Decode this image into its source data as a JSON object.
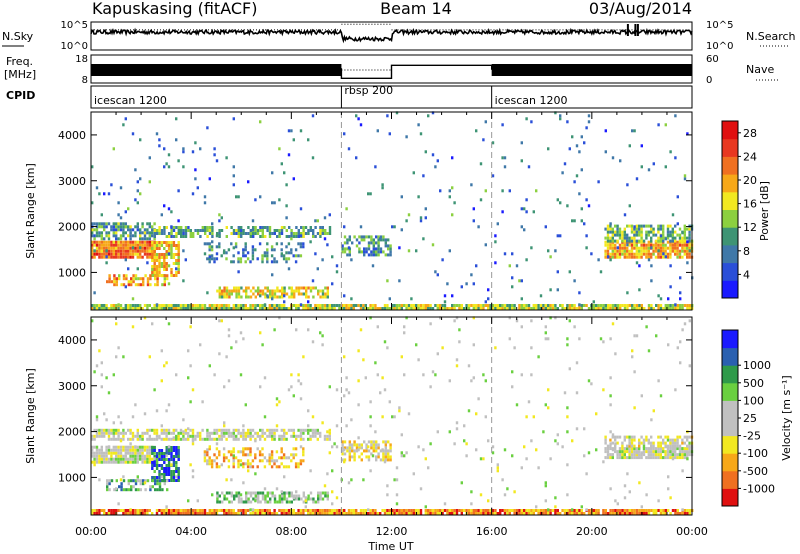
{
  "header": {
    "station": "Kapuskasing (fitACF)",
    "beam": "Beam 14",
    "date": "03/Aug/2014"
  },
  "strip_panels": {
    "nsky": {
      "left_label": "N.Sky",
      "left_ticks": [
        "10^5",
        "10^0"
      ],
      "right_label": "N.Search",
      "right_ticks": [
        "10^5",
        "10^0"
      ],
      "log_range": [
        0,
        5
      ],
      "segments": [
        {
          "start_h": 0,
          "end_h": 10,
          "nsky_log": 3.2,
          "nsearch_log": 3.6
        },
        {
          "start_h": 10,
          "end_h": 12,
          "nsky_log": 2.0,
          "nsearch_log": 4.6
        },
        {
          "start_h": 12,
          "end_h": 24,
          "nsky_log": 3.2,
          "nsearch_log": 3.6
        }
      ]
    },
    "freq": {
      "left_label": "Freq.",
      "left_unit": "[MHz]",
      "left_ticks": [
        "18",
        "8"
      ],
      "right_label": "Nave",
      "right_ticks": [
        "60",
        "0"
      ],
      "nave_range": [
        0,
        60
      ],
      "segments": [
        {
          "start_h": 0,
          "end_h": 10,
          "nave": 30
        },
        {
          "start_h": 10,
          "end_h": 12,
          "nave": 10
        },
        {
          "start_h": 12,
          "end_h": 16,
          "nave": 38
        },
        {
          "start_h": 16,
          "end_h": 24,
          "nave": 30
        }
      ]
    },
    "cpid": {
      "label": "CPID",
      "segments": [
        {
          "start_h": 0,
          "end_h": 10,
          "name": "icescan 1200"
        },
        {
          "start_h": 10,
          "end_h": 16,
          "name": "rbsp 200"
        },
        {
          "start_h": 16,
          "end_h": 24,
          "name": "icescan 1200"
        }
      ]
    }
  },
  "chart_data": [
    {
      "type": "heatmap",
      "ylabel": "Slant Range [km]",
      "xlabel": "",
      "xlim_hours": [
        0,
        24
      ],
      "ylim_km": [
        180,
        4500
      ],
      "yticks": [
        1000,
        2000,
        3000,
        4000
      ],
      "colorbar": {
        "label": "Power [dB]",
        "range": [
          0,
          30
        ],
        "ticks": [
          "4",
          "8",
          "12",
          "16",
          "20",
          "24",
          "28"
        ],
        "colors": [
          "#1a1aff",
          "#2a4fd8",
          "#3f78a8",
          "#3e9474",
          "#8cd040",
          "#f2e820",
          "#f7a818",
          "#f07020",
          "#e83820",
          "#e01010"
        ]
      },
      "regions": [
        {
          "t0": 0.0,
          "t1": 2.5,
          "r0": 1300,
          "r1": 1650,
          "level": 0.75,
          "density": 0.95
        },
        {
          "t0": 2.4,
          "t1": 3.5,
          "r0": 900,
          "r1": 1650,
          "level": 0.6,
          "density": 0.75
        },
        {
          "t0": 0.6,
          "t1": 3.0,
          "r0": 700,
          "r1": 950,
          "level": 0.65,
          "density": 0.6
        },
        {
          "t0": 0.0,
          "t1": 2.5,
          "r0": 1700,
          "r1": 2050,
          "level": 0.35,
          "density": 0.7
        },
        {
          "t0": 2.5,
          "t1": 9.5,
          "r0": 1750,
          "r1": 2000,
          "level": 0.35,
          "density": 0.6
        },
        {
          "t0": 4.5,
          "t1": 8.5,
          "r0": 1200,
          "r1": 1650,
          "level": 0.3,
          "density": 0.35
        },
        {
          "t0": 5.0,
          "t1": 9.5,
          "r0": 430,
          "r1": 650,
          "level": 0.55,
          "density": 0.65
        },
        {
          "t0": 10.0,
          "t1": 12.0,
          "r0": 1350,
          "r1": 1750,
          "level": 0.3,
          "density": 0.55
        },
        {
          "t0": 20.5,
          "t1": 24.0,
          "r0": 1300,
          "r1": 1650,
          "level": 0.65,
          "density": 0.9
        },
        {
          "t0": 20.5,
          "t1": 24.0,
          "r0": 1650,
          "r1": 2000,
          "level": 0.4,
          "density": 0.7
        },
        {
          "t0": 0.0,
          "t1": 24.0,
          "r0": 180,
          "r1": 260,
          "level": 0.5,
          "density": 0.9
        },
        {
          "t0": 0.0,
          "t1": 24.0,
          "r0": 260,
          "r1": 4500,
          "level": 0.25,
          "density": 0.025
        }
      ]
    },
    {
      "type": "heatmap",
      "ylabel": "Slant Range [km]",
      "xlabel": "Time UT",
      "xlim_hours": [
        0,
        24
      ],
      "ylim_km": [
        180,
        4500
      ],
      "yticks": [
        1000,
        2000,
        3000,
        4000
      ],
      "xticks": [
        "00:00",
        "04:00",
        "08:00",
        "12:00",
        "16:00",
        "20:00",
        "00:00"
      ],
      "colorbar": {
        "label": "Velocity [m s⁻¹]",
        "ticks": [
          "-1000",
          "-500",
          "-100",
          "-25",
          "25",
          "100",
          "500",
          "1000"
        ],
        "colors": [
          "#e01010",
          "#f07020",
          "#f7a818",
          "#f2e820",
          "#c0c0c0",
          "#c0c0c0",
          "#6ad040",
          "#2f9a4a",
          "#2a60b0",
          "#1a1aff"
        ]
      },
      "regions": [
        {
          "t0": 0.0,
          "t1": 2.5,
          "r0": 1300,
          "r1": 1650,
          "level": 0.5,
          "density": 0.95
        },
        {
          "t0": 2.4,
          "t1": 3.5,
          "r0": 900,
          "r1": 1650,
          "level": 0.85,
          "density": 0.7
        },
        {
          "t0": 0.6,
          "t1": 3.0,
          "r0": 700,
          "r1": 950,
          "level": 0.7,
          "density": 0.6
        },
        {
          "t0": 0.0,
          "t1": 9.5,
          "r0": 1800,
          "r1": 2050,
          "level": 0.48,
          "density": 0.7
        },
        {
          "t0": 4.5,
          "t1": 8.5,
          "r0": 1200,
          "r1": 1650,
          "level": 0.3,
          "density": 0.35
        },
        {
          "t0": 5.0,
          "t1": 9.5,
          "r0": 430,
          "r1": 650,
          "level": 0.62,
          "density": 0.6
        },
        {
          "t0": 10.0,
          "t1": 12.0,
          "r0": 1350,
          "r1": 1750,
          "level": 0.4,
          "density": 0.55
        },
        {
          "t0": 20.5,
          "t1": 24.0,
          "r0": 1400,
          "r1": 1650,
          "level": 0.5,
          "density": 0.9
        },
        {
          "t0": 20.5,
          "t1": 24.0,
          "r0": 1650,
          "r1": 1900,
          "level": 0.45,
          "density": 0.6
        },
        {
          "t0": 0.0,
          "t1": 24.0,
          "r0": 180,
          "r1": 260,
          "level": 0.2,
          "density": 0.9
        },
        {
          "t0": 0.0,
          "t1": 24.0,
          "r0": 260,
          "r1": 4500,
          "level": 0.5,
          "density": 0.025
        }
      ]
    }
  ]
}
